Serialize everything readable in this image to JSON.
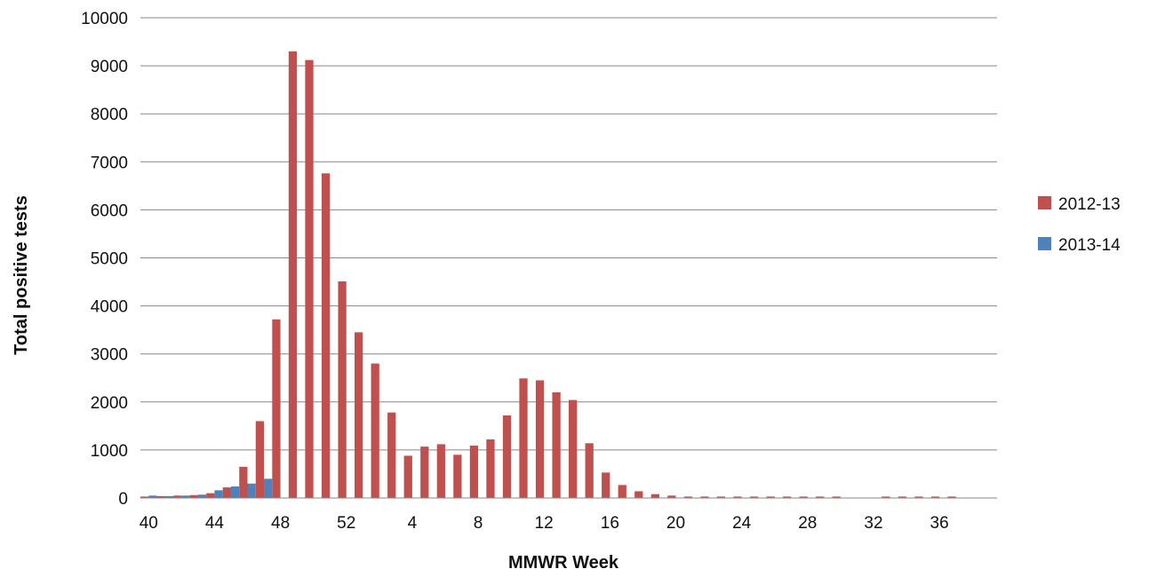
{
  "chart_data": {
    "type": "bar",
    "xlabel": "MMWR Week",
    "ylabel": "Total positive tests",
    "ylim": [
      0,
      10000
    ],
    "yticks": [
      0,
      1000,
      2000,
      3000,
      4000,
      5000,
      6000,
      7000,
      8000,
      9000,
      10000
    ],
    "grid": "horizontal",
    "legend_position": "right",
    "categories": [
      40,
      41,
      42,
      43,
      44,
      45,
      46,
      47,
      48,
      49,
      50,
      51,
      52,
      1,
      2,
      3,
      4,
      5,
      6,
      7,
      8,
      9,
      10,
      11,
      12,
      13,
      14,
      15,
      16,
      17,
      18,
      19,
      20,
      21,
      22,
      23,
      24,
      25,
      26,
      27,
      28,
      29,
      30,
      31,
      32,
      33,
      34,
      35,
      36,
      37,
      38,
      39
    ],
    "x_tick_labels": [
      "40",
      "44",
      "48",
      "52",
      "4",
      "8",
      "12",
      "16",
      "20",
      "24",
      "28",
      "32",
      "36"
    ],
    "series": [
      {
        "name": "2012-13",
        "color": "#c0504d",
        "values": [
          30,
          40,
          50,
          60,
          100,
          220,
          650,
          1600,
          3720,
          9300,
          9120,
          6760,
          4510,
          3450,
          2800,
          1780,
          880,
          1070,
          1120,
          900,
          1090,
          1220,
          1720,
          2490,
          2450,
          2200,
          2040,
          1140,
          530,
          270,
          140,
          80,
          50,
          30,
          30,
          30,
          30,
          30,
          30,
          30,
          30,
          30,
          30,
          0,
          0,
          30,
          30,
          30,
          30,
          30,
          0,
          0
        ]
      },
      {
        "name": "2013-14",
        "color": "#4f81bd",
        "values": [
          50,
          40,
          50,
          70,
          160,
          240,
          300,
          400,
          null,
          null,
          null,
          null,
          null,
          null,
          null,
          null,
          null,
          null,
          null,
          null,
          null,
          null,
          null,
          null,
          null,
          null,
          null,
          null,
          null,
          null,
          null,
          null,
          null,
          null,
          null,
          null,
          null,
          null,
          null,
          null,
          null,
          null,
          null,
          null,
          null,
          null,
          null,
          null,
          null,
          null,
          null,
          null
        ]
      }
    ]
  }
}
